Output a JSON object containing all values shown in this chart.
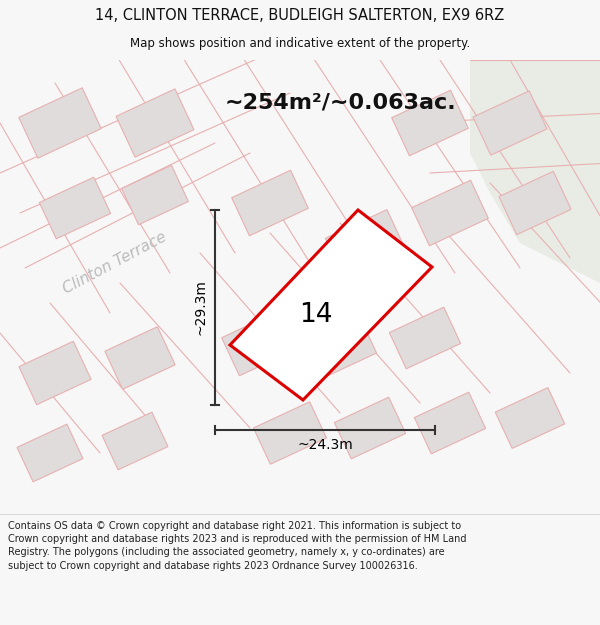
{
  "title_line1": "14, CLINTON TERRACE, BUDLEIGH SALTERTON, EX9 6RZ",
  "title_line2": "Map shows position and indicative extent of the property.",
  "area_text": "~254m²/~0.063ac.",
  "width_label": "~24.3m",
  "height_label": "~29.3m",
  "number_label": "14",
  "road_label": "Clinton Terrace",
  "footer_text": "Contains OS data © Crown copyright and database right 2021. This information is subject to Crown copyright and database rights 2023 and is reproduced with the permission of HM Land Registry. The polygons (including the associated geometry, namely x, y co-ordinates) are subject to Crown copyright and database rights 2023 Ordnance Survey 100026316.",
  "bg_color": "#f7f7f7",
  "map_bg": "#f2f0f0",
  "green_bg": "#e8ece5",
  "plot_outline_color": "#dd0000",
  "building_fill": "#e0dcdc",
  "building_stroke": "#e8b0b0",
  "plot_area_fill": "#e8e4e4",
  "dim_line_color": "#333333",
  "title_color": "#111111",
  "road_label_color": "#bbbbbb",
  "footer_color": "#222222"
}
